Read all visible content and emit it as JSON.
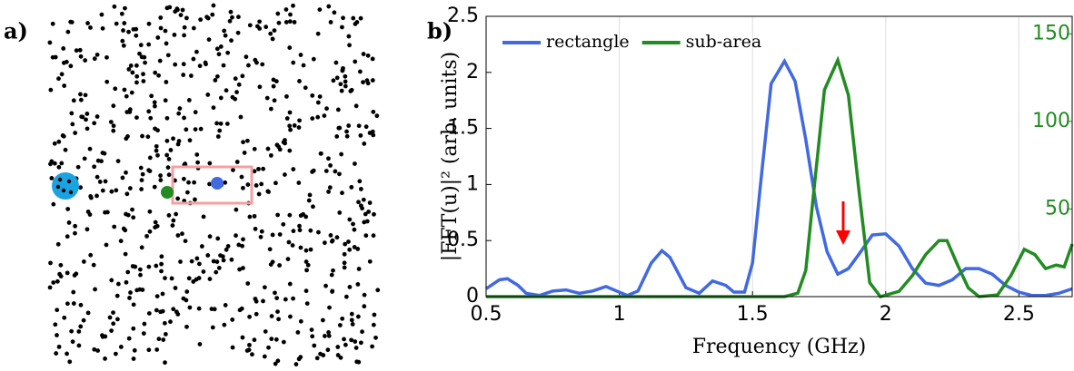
{
  "panel_labels": [
    "a)",
    "b)"
  ],
  "chart_data": {
    "type": "line",
    "x_label": "Frequency (GHz)",
    "y_label": "|FFT(u)|² (arb. units)",
    "xlim": [
      0.5,
      2.7
    ],
    "xticks": [
      0.5,
      1,
      1.5,
      2,
      2.5
    ],
    "ylim": [
      0,
      2.5
    ],
    "yticks": [
      0,
      0.5,
      1,
      1.5,
      2,
      2.5
    ],
    "y2lim": [
      0,
      160
    ],
    "y2ticks": [
      50,
      100,
      150
    ],
    "grid": "x",
    "legend": "upper left",
    "series": [
      {
        "name": "rectangle",
        "color": "#4169e1",
        "x": [
          0.5,
          0.55,
          0.58,
          0.62,
          0.65,
          0.7,
          0.75,
          0.8,
          0.85,
          0.9,
          0.95,
          1.0,
          1.03,
          1.07,
          1.12,
          1.16,
          1.19,
          1.25,
          1.3,
          1.35,
          1.4,
          1.43,
          1.47,
          1.5,
          1.53,
          1.57,
          1.62,
          1.66,
          1.7,
          1.74,
          1.78,
          1.82,
          1.86,
          1.9,
          1.95,
          2.0,
          2.05,
          2.1,
          2.15,
          2.2,
          2.25,
          2.3,
          2.35,
          2.4,
          2.45,
          2.5,
          2.55,
          2.6,
          2.65,
          2.7
        ],
        "values": [
          0.07,
          0.15,
          0.16,
          0.1,
          0.03,
          0.01,
          0.05,
          0.06,
          0.03,
          0.05,
          0.09,
          0.04,
          0.01,
          0.05,
          0.3,
          0.41,
          0.35,
          0.08,
          0.03,
          0.14,
          0.1,
          0.04,
          0.04,
          0.3,
          1.0,
          1.9,
          2.1,
          1.92,
          1.4,
          0.8,
          0.4,
          0.2,
          0.25,
          0.38,
          0.55,
          0.56,
          0.45,
          0.25,
          0.12,
          0.1,
          0.15,
          0.25,
          0.25,
          0.2,
          0.1,
          0.04,
          0.01,
          0.01,
          0.03,
          0.07
        ]
      },
      {
        "name": "sub-area",
        "color": "#228b22",
        "axis": "y2",
        "x": [
          0.5,
          0.8,
          1.1,
          1.4,
          1.62,
          1.67,
          1.7,
          1.73,
          1.77,
          1.82,
          1.86,
          1.9,
          1.94,
          1.98,
          2.05,
          2.1,
          2.15,
          2.2,
          2.23,
          2.27,
          2.31,
          2.35,
          2.42,
          2.47,
          2.52,
          2.56,
          2.6,
          2.64,
          2.67,
          2.7
        ],
        "values": [
          0,
          0,
          0,
          0,
          0,
          2,
          15,
          60,
          118,
          135,
          115,
          60,
          8,
          0,
          3,
          12,
          24,
          32,
          32,
          18,
          5,
          0,
          1,
          12,
          27,
          24,
          16,
          18,
          17,
          30
        ]
      }
    ]
  }
}
